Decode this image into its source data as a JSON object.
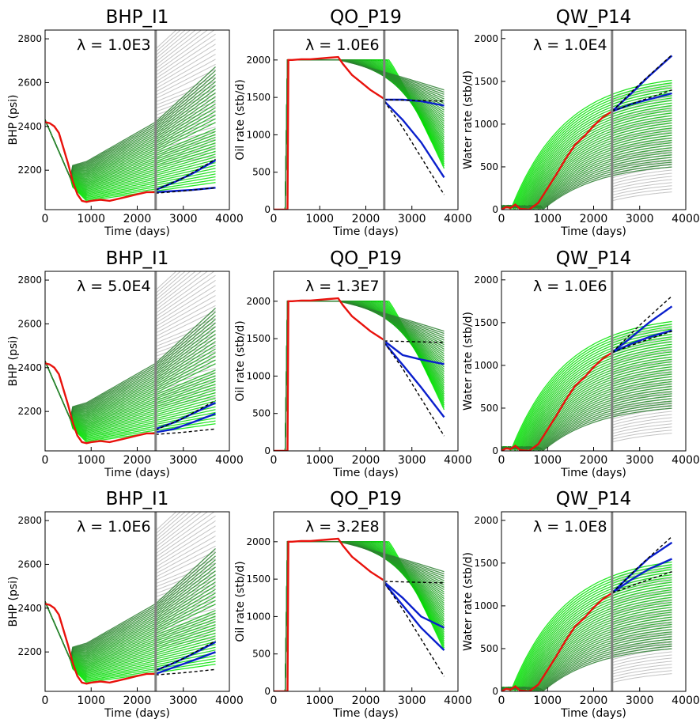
{
  "colors": {
    "prior": "#a9a9a9",
    "posterior_light": "#00e600",
    "posterior_dark": "#2e7d32",
    "observed": "#e8120c",
    "selected": "#0a1fcc",
    "truth_bounds": "#000000",
    "divider": "#808080"
  },
  "chart_data": [
    {
      "type": "line",
      "title": "BHP_I1",
      "lambda_label": "λ = 1.0E3",
      "ylabel": "BHP (psi)",
      "xlabel": "Time (days)",
      "xlim": [
        0,
        4000
      ],
      "ylim": [
        2020,
        2840
      ],
      "xticks": [
        0,
        1000,
        2000,
        3000,
        4000
      ],
      "yticks": [
        2200,
        2400,
        2600,
        2800
      ],
      "history_end": 2400,
      "observed": {
        "x": [
          0,
          100,
          200,
          300,
          400,
          500,
          600,
          700,
          800,
          900,
          1000,
          1200,
          1400,
          1600,
          1800,
          2000,
          2200,
          2400
        ],
        "y": [
          2420,
          2415,
          2400,
          2370,
          2300,
          2230,
          2150,
          2090,
          2060,
          2055,
          2060,
          2065,
          2060,
          2070,
          2080,
          2090,
          2100,
          2100
        ]
      },
      "selected": [
        {
          "x": [
            2400,
            2800,
            3200,
            3700
          ],
          "y": [
            2110,
            2145,
            2185,
            2245
          ]
        },
        {
          "x": [
            2400,
            2800,
            3200,
            3700
          ],
          "y": [
            2100,
            2105,
            2110,
            2120
          ]
        }
      ],
      "bounds": [
        {
          "x": [
            2400,
            3000,
            3700
          ],
          "y": [
            2110,
            2165,
            2250
          ]
        },
        {
          "x": [
            2400,
            3000,
            3700
          ],
          "y": [
            2095,
            2105,
            2120
          ]
        }
      ]
    },
    {
      "type": "line",
      "title": "QO_P19",
      "lambda_label": "λ = 1.0E6",
      "ylabel": "Oil rate (stb/d)",
      "xlabel": "Time (days)",
      "xlim": [
        0,
        4000
      ],
      "ylim": [
        0,
        2400
      ],
      "xticks": [
        0,
        1000,
        2000,
        3000,
        4000
      ],
      "yticks": [
        0,
        500,
        1000,
        1500,
        2000
      ],
      "history_end": 2400,
      "observed": {
        "x": [
          0,
          280,
          300,
          320,
          400,
          600,
          800,
          1000,
          1200,
          1400,
          1500,
          1700,
          1900,
          2100,
          2300,
          2400
        ],
        "y": [
          0,
          0,
          0,
          2000,
          2000,
          2010,
          2010,
          2020,
          2030,
          2040,
          1950,
          1800,
          1700,
          1600,
          1520,
          1480
        ]
      },
      "selected": [
        {
          "x": [
            2400,
            2800,
            3200,
            3700
          ],
          "y": [
            1470,
            1470,
            1450,
            1390
          ]
        },
        {
          "x": [
            2400,
            2800,
            3200,
            3700
          ],
          "y": [
            1450,
            1200,
            900,
            430
          ]
        }
      ],
      "bounds": [
        {
          "x": [
            2400,
            3000,
            3700
          ],
          "y": [
            1470,
            1460,
            1450
          ]
        },
        {
          "x": [
            2400,
            2800,
            3200,
            3700
          ],
          "y": [
            1450,
            1100,
            700,
            200
          ]
        }
      ]
    },
    {
      "type": "line",
      "title": "QW_P14",
      "lambda_label": "λ = 1.0E4",
      "ylabel": "Water rate (stb/d)",
      "xlabel": "Time (days)",
      "xlim": [
        0,
        4000
      ],
      "ylim": [
        0,
        2100
      ],
      "xticks": [
        0,
        1000,
        2000,
        3000,
        4000
      ],
      "yticks": [
        0,
        500,
        1000,
        1500,
        2000
      ],
      "history_end": 2400,
      "observed": {
        "x": [
          0,
          100,
          200,
          300,
          400,
          600,
          800,
          1000,
          1200,
          1400,
          1600,
          1800,
          2000,
          2200,
          2400
        ],
        "y": [
          0,
          30,
          20,
          60,
          10,
          0,
          80,
          250,
          420,
          600,
          760,
          860,
          980,
          1080,
          1150
        ]
      },
      "selected": [
        {
          "x": [
            2400,
            2800,
            3200,
            3700
          ],
          "y": [
            1150,
            1350,
            1560,
            1800
          ]
        },
        {
          "x": [
            2400,
            2800,
            3200,
            3700
          ],
          "y": [
            1150,
            1230,
            1290,
            1360
          ]
        }
      ],
      "bounds": [
        {
          "x": [
            2400,
            3000,
            3700
          ],
          "y": [
            1150,
            1470,
            1810
          ]
        },
        {
          "x": [
            2400,
            3000,
            3700
          ],
          "y": [
            1150,
            1270,
            1400
          ]
        }
      ]
    },
    {
      "type": "line",
      "title": "BHP_I1",
      "lambda_label": "λ = 5.0E4",
      "ylabel": "BHP (psi)",
      "xlabel": "Time (days)",
      "xlim": [
        0,
        4000
      ],
      "ylim": [
        2020,
        2840
      ],
      "xticks": [
        0,
        1000,
        2000,
        3000,
        4000
      ],
      "yticks": [
        2200,
        2400,
        2600,
        2800
      ],
      "history_end": 2400,
      "observed": {
        "x": [
          0,
          100,
          200,
          300,
          400,
          500,
          600,
          700,
          800,
          900,
          1000,
          1200,
          1400,
          1600,
          1800,
          2000,
          2200,
          2400
        ],
        "y": [
          2420,
          2415,
          2400,
          2370,
          2300,
          2230,
          2150,
          2090,
          2060,
          2055,
          2060,
          2065,
          2060,
          2070,
          2080,
          2090,
          2100,
          2100
        ]
      },
      "selected": [
        {
          "x": [
            2400,
            2800,
            3200,
            3700
          ],
          "y": [
            2120,
            2150,
            2190,
            2240
          ]
        },
        {
          "x": [
            2400,
            2800,
            3200,
            3700
          ],
          "y": [
            2105,
            2120,
            2150,
            2190
          ]
        }
      ],
      "bounds": [
        {
          "x": [
            2400,
            3000,
            3700
          ],
          "y": [
            2115,
            2170,
            2250
          ]
        },
        {
          "x": [
            2400,
            3000,
            3700
          ],
          "y": [
            2095,
            2105,
            2120
          ]
        }
      ]
    },
    {
      "type": "line",
      "title": "QO_P19",
      "lambda_label": "λ = 1.3E7",
      "ylabel": "Oil rate (stb/d)",
      "xlabel": "Time (days)",
      "xlim": [
        0,
        4000
      ],
      "ylim": [
        0,
        2400
      ],
      "xticks": [
        0,
        1000,
        2000,
        3000,
        4000
      ],
      "yticks": [
        0,
        500,
        1000,
        1500,
        2000
      ],
      "history_end": 2400,
      "observed": {
        "x": [
          0,
          280,
          300,
          320,
          400,
          600,
          800,
          1000,
          1200,
          1400,
          1500,
          1700,
          1900,
          2100,
          2300,
          2400
        ],
        "y": [
          0,
          0,
          0,
          2000,
          2000,
          2010,
          2010,
          2020,
          2030,
          2040,
          1950,
          1800,
          1700,
          1600,
          1520,
          1480
        ]
      },
      "selected": [
        {
          "x": [
            2400,
            2800,
            3200,
            3700
          ],
          "y": [
            1470,
            1280,
            1220,
            1160
          ]
        },
        {
          "x": [
            2400,
            2800,
            3200,
            3700
          ],
          "y": [
            1450,
            1150,
            850,
            450
          ]
        }
      ],
      "bounds": [
        {
          "x": [
            2400,
            3000,
            3700
          ],
          "y": [
            1470,
            1460,
            1450
          ]
        },
        {
          "x": [
            2400,
            2800,
            3200,
            3700
          ],
          "y": [
            1450,
            1100,
            700,
            200
          ]
        }
      ]
    },
    {
      "type": "line",
      "title": "QW_P14",
      "lambda_label": "λ = 1.0E6",
      "ylabel": "Water rate (stb/d)",
      "xlabel": "Time (days)",
      "xlim": [
        0,
        4000
      ],
      "ylim": [
        0,
        2100
      ],
      "xticks": [
        0,
        1000,
        2000,
        3000,
        4000
      ],
      "yticks": [
        0,
        500,
        1000,
        1500,
        2000
      ],
      "history_end": 2400,
      "observed": {
        "x": [
          0,
          100,
          200,
          300,
          400,
          600,
          800,
          1000,
          1200,
          1400,
          1600,
          1800,
          2000,
          2200,
          2400
        ],
        "y": [
          0,
          30,
          20,
          60,
          10,
          0,
          80,
          250,
          420,
          600,
          760,
          860,
          980,
          1080,
          1150
        ]
      },
      "selected": [
        {
          "x": [
            2400,
            2800,
            3200,
            3700
          ],
          "y": [
            1150,
            1320,
            1500,
            1690
          ]
        },
        {
          "x": [
            2400,
            2800,
            3200,
            3700
          ],
          "y": [
            1150,
            1250,
            1330,
            1410
          ]
        }
      ],
      "bounds": [
        {
          "x": [
            2400,
            3000,
            3700
          ],
          "y": [
            1150,
            1470,
            1810
          ]
        },
        {
          "x": [
            2400,
            3000,
            3700
          ],
          "y": [
            1150,
            1270,
            1400
          ]
        }
      ]
    },
    {
      "type": "line",
      "title": "BHP_I1",
      "lambda_label": "λ = 1.0E6",
      "ylabel": "BHP (psi)",
      "xlabel": "Time (days)",
      "xlim": [
        0,
        4000
      ],
      "ylim": [
        2020,
        2840
      ],
      "xticks": [
        0,
        1000,
        2000,
        3000,
        4000
      ],
      "yticks": [
        2200,
        2400,
        2600,
        2800
      ],
      "history_end": 2400,
      "observed": {
        "x": [
          0,
          100,
          200,
          300,
          400,
          500,
          600,
          700,
          800,
          900,
          1000,
          1200,
          1400,
          1600,
          1800,
          2000,
          2200,
          2400
        ],
        "y": [
          2420,
          2415,
          2400,
          2370,
          2300,
          2230,
          2150,
          2090,
          2060,
          2055,
          2060,
          2065,
          2060,
          2070,
          2080,
          2090,
          2100,
          2100
        ]
      },
      "selected": [
        {
          "x": [
            2400,
            2800,
            3200,
            3700
          ],
          "y": [
            2115,
            2150,
            2190,
            2245
          ]
        },
        {
          "x": [
            2400,
            2800,
            3200,
            3700
          ],
          "y": [
            2100,
            2130,
            2160,
            2200
          ]
        }
      ],
      "bounds": [
        {
          "x": [
            2400,
            3000,
            3700
          ],
          "y": [
            2115,
            2170,
            2250
          ]
        },
        {
          "x": [
            2400,
            3000,
            3700
          ],
          "y": [
            2095,
            2105,
            2120
          ]
        }
      ]
    },
    {
      "type": "line",
      "title": "QO_P19",
      "lambda_label": "λ = 3.2E8",
      "ylabel": "Oil rate (stb/d)",
      "xlabel": "Time (days)",
      "xlim": [
        0,
        4000
      ],
      "ylim": [
        0,
        2400
      ],
      "xticks": [
        0,
        1000,
        2000,
        3000,
        4000
      ],
      "yticks": [
        0,
        500,
        1000,
        1500,
        2000
      ],
      "history_end": 2400,
      "observed": {
        "x": [
          0,
          280,
          300,
          320,
          400,
          600,
          800,
          1000,
          1200,
          1400,
          1500,
          1700,
          1900,
          2100,
          2300,
          2400
        ],
        "y": [
          0,
          0,
          0,
          2000,
          2000,
          2010,
          2010,
          2020,
          2030,
          2040,
          1950,
          1800,
          1700,
          1600,
          1520,
          1480
        ]
      },
      "selected": [
        {
          "x": [
            2400,
            2800,
            3200,
            3700
          ],
          "y": [
            1460,
            1250,
            1000,
            850
          ]
        },
        {
          "x": [
            2400,
            2800,
            3200,
            3700
          ],
          "y": [
            1450,
            1150,
            850,
            550
          ]
        }
      ],
      "bounds": [
        {
          "x": [
            2400,
            3000,
            3700
          ],
          "y": [
            1470,
            1460,
            1450
          ]
        },
        {
          "x": [
            2400,
            2800,
            3200,
            3700
          ],
          "y": [
            1450,
            1100,
            700,
            200
          ]
        }
      ]
    },
    {
      "type": "line",
      "title": "QW_P14",
      "lambda_label": "λ = 1.0E8",
      "ylabel": "Water rate (stb/d)",
      "xlabel": "Time (days)",
      "xlim": [
        0,
        4000
      ],
      "ylim": [
        0,
        2100
      ],
      "xticks": [
        0,
        1000,
        2000,
        3000,
        4000
      ],
      "yticks": [
        0,
        500,
        1000,
        1500,
        2000
      ],
      "history_end": 2400,
      "observed": {
        "x": [
          0,
          100,
          200,
          300,
          400,
          600,
          800,
          1000,
          1200,
          1400,
          1600,
          1800,
          2000,
          2200,
          2400
        ],
        "y": [
          0,
          30,
          20,
          60,
          10,
          0,
          80,
          250,
          420,
          600,
          760,
          860,
          980,
          1080,
          1150
        ]
      },
      "selected": [
        {
          "x": [
            2400,
            2800,
            3200,
            3700
          ],
          "y": [
            1150,
            1360,
            1560,
            1740
          ]
        },
        {
          "x": [
            2400,
            2800,
            3200,
            3700
          ],
          "y": [
            1150,
            1300,
            1430,
            1550
          ]
        }
      ],
      "bounds": [
        {
          "x": [
            2400,
            3000,
            3700
          ],
          "y": [
            1150,
            1470,
            1810
          ]
        },
        {
          "x": [
            2400,
            3000,
            3700
          ],
          "y": [
            1150,
            1270,
            1400
          ]
        }
      ]
    }
  ]
}
